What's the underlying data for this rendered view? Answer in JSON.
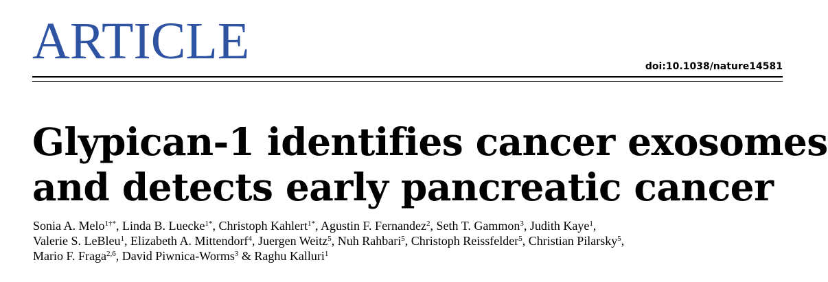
{
  "header": {
    "section_label": "ARTICLE",
    "doi": "doi:10.1038/nature14581",
    "accent_color": "#2f53a3"
  },
  "title": {
    "line1": "Glypican-1 identifies cancer exosomes",
    "line2": "and detects early pancreatic cancer"
  },
  "authors": [
    [
      {
        "name": "Sonia A. Melo",
        "sup": "1†*",
        "sep": ", "
      },
      {
        "name": "Linda B. Luecke",
        "sup": "1*",
        "sep": ", "
      },
      {
        "name": "Christoph Kahlert",
        "sup": "1*",
        "sep": ", "
      },
      {
        "name": "Agustin F. Fernandez",
        "sup": "2",
        "sep": ", "
      },
      {
        "name": "Seth T. Gammon",
        "sup": "3",
        "sep": ", "
      },
      {
        "name": "Judith Kaye",
        "sup": "1",
        "sep": ","
      }
    ],
    [
      {
        "name": "Valerie S. LeBleu",
        "sup": "1",
        "sep": ", "
      },
      {
        "name": "Elizabeth A. Mittendorf",
        "sup": "4",
        "sep": ", "
      },
      {
        "name": "Juergen Weitz",
        "sup": "5",
        "sep": ", "
      },
      {
        "name": "Nuh Rahbari",
        "sup": "5",
        "sep": ", "
      },
      {
        "name": "Christoph Reissfelder",
        "sup": "5",
        "sep": ", "
      },
      {
        "name": "Christian Pilarsky",
        "sup": "5",
        "sep": ","
      }
    ],
    [
      {
        "name": "Mario F. Fraga",
        "sup": "2,6",
        "sep": ", "
      },
      {
        "name": "David Piwnica-Worms",
        "sup": "3",
        "sep": " & "
      },
      {
        "name": "Raghu Kalluri",
        "sup": "1",
        "sep": ""
      }
    ]
  ]
}
